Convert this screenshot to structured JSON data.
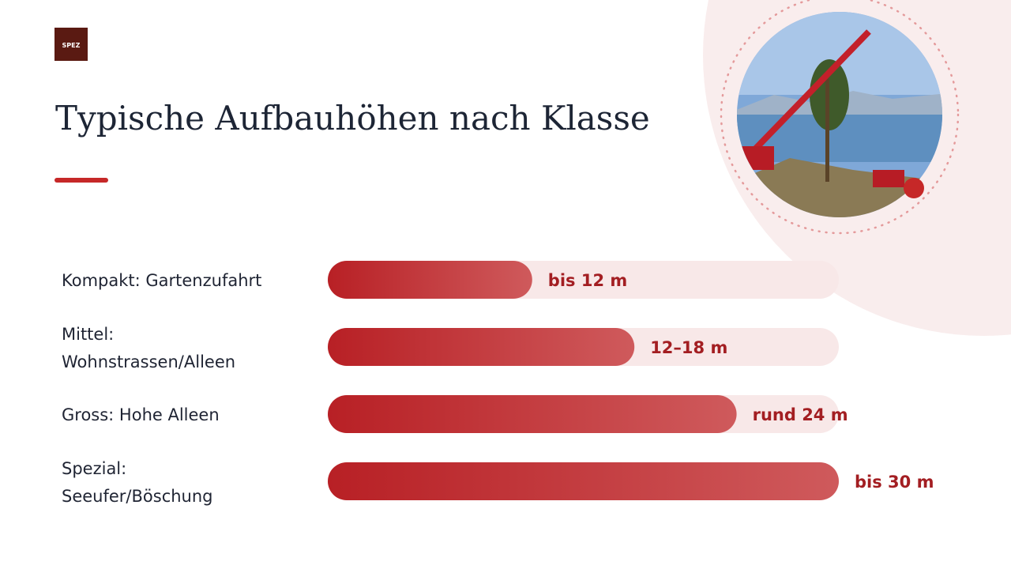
{
  "logo": "SPEZ",
  "chart_data": {
    "type": "bar",
    "orientation": "horizontal",
    "title": "Typische Aufbauhöhen nach Klasse",
    "categories": [
      "Kompakt: Gartenzufahrt",
      "Mittel: Wohnstrassen/Alleen",
      "Gross: Hohe Alleen",
      "Spezial: Seeufer/Böschung"
    ],
    "values": [
      12,
      18,
      24,
      30
    ],
    "value_labels": [
      "bis 12 m",
      "12–18 m",
      "rund 24 m",
      "bis 30 m"
    ],
    "color": "#b82025"
  }
}
